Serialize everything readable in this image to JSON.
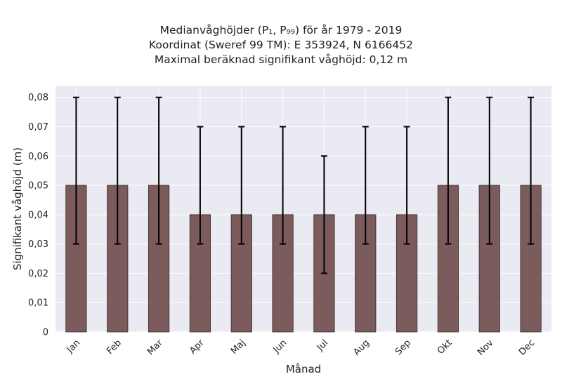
{
  "title_lines": [
    "Medianvåghöjder (P₁, P₉₉) för år 1979 - 2019",
    "Koordinat (Sweref 99 TM): E 353924, N 6166452",
    "Maximal beräknad signifikant våghöjd: 0,12 m"
  ],
  "colors": {
    "plot_background": "#eaeaf2",
    "bar_fill": "#7b5b5b",
    "bar_edge": "#3a2a2a",
    "error_bar": "#000000",
    "grid": "#ffffff"
  },
  "chart_data": {
    "type": "bar",
    "categories": [
      "Jan",
      "Feb",
      "Mar",
      "Apr",
      "Maj",
      "Jun",
      "Jul",
      "Aug",
      "Sep",
      "Okt",
      "Nov",
      "Dec"
    ],
    "values": [
      0.05,
      0.05,
      0.05,
      0.04,
      0.04,
      0.04,
      0.04,
      0.04,
      0.04,
      0.05,
      0.05,
      0.05
    ],
    "p1": [
      0.03,
      0.03,
      0.03,
      0.03,
      0.03,
      0.03,
      0.02,
      0.03,
      0.03,
      0.03,
      0.03,
      0.03
    ],
    "p99": [
      0.08,
      0.08,
      0.08,
      0.07,
      0.07,
      0.07,
      0.06,
      0.07,
      0.07,
      0.08,
      0.08,
      0.08
    ],
    "xlabel": "Månad",
    "ylabel": "Signifikant våghöjd (m)",
    "ylim": [
      0,
      0.084
    ],
    "yticks": [
      0,
      0.01,
      0.02,
      0.03,
      0.04,
      0.05,
      0.06,
      0.07,
      0.08
    ],
    "ytick_labels": [
      "0",
      "0,01",
      "0,02",
      "0,03",
      "0,04",
      "0,05",
      "0,06",
      "0,07",
      "0,08"
    ],
    "grid": true,
    "xtick_rotation": 45
  }
}
